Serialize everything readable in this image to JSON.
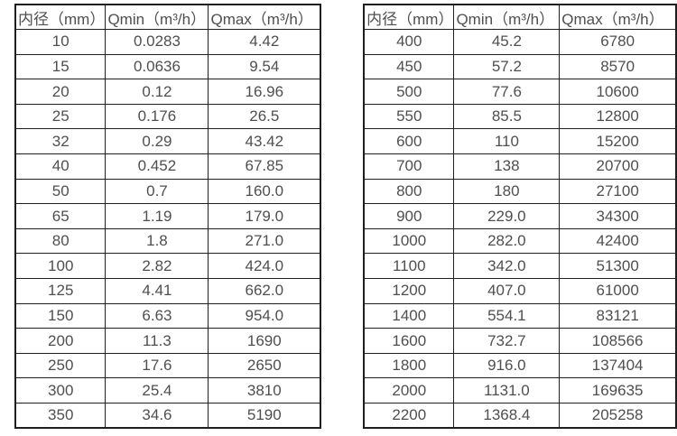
{
  "colors": {
    "border": "#1f1f1f",
    "text": "#4f4f4f",
    "background": "#ffffff"
  },
  "tables": [
    {
      "name": "flow-table-small-diameters",
      "headers": [
        "内径（mm）",
        "Qmin（m³/h）",
        "Qmax（m³/h）"
      ],
      "rows": [
        [
          "10",
          "0.0283",
          "4.42"
        ],
        [
          "15",
          "0.0636",
          "9.54"
        ],
        [
          "20",
          "0.12",
          "16.96"
        ],
        [
          "25",
          "0.176",
          "26.5"
        ],
        [
          "32",
          "0.29",
          "43.42"
        ],
        [
          "40",
          "0.452",
          "67.85"
        ],
        [
          "50",
          "0.7",
          "160.0"
        ],
        [
          "65",
          "1.19",
          "179.0"
        ],
        [
          "80",
          "1.8",
          "271.0"
        ],
        [
          "100",
          "2.82",
          "424.0"
        ],
        [
          "125",
          "4.41",
          "662.0"
        ],
        [
          "150",
          "6.63",
          "954.0"
        ],
        [
          "200",
          "11.3",
          "1690"
        ],
        [
          "250",
          "17.6",
          "2650"
        ],
        [
          "300",
          "25.4",
          "3810"
        ],
        [
          "350",
          "34.6",
          "5190"
        ]
      ]
    },
    {
      "name": "flow-table-large-diameters",
      "headers": [
        "内径（mm）",
        "Qmin（m³/h）",
        "Qmax（m³/h）"
      ],
      "rows": [
        [
          "400",
          "45.2",
          "6780"
        ],
        [
          "450",
          "57.2",
          "8570"
        ],
        [
          "500",
          "77.6",
          "10600"
        ],
        [
          "550",
          "85.5",
          "12800"
        ],
        [
          "600",
          "110",
          "15200"
        ],
        [
          "700",
          "138",
          "20700"
        ],
        [
          "800",
          "180",
          "27100"
        ],
        [
          "900",
          "229.0",
          "34300"
        ],
        [
          "1000",
          "282.0",
          "42400"
        ],
        [
          "1100",
          "342.0",
          "51300"
        ],
        [
          "1200",
          "407.0",
          "61000"
        ],
        [
          "1400",
          "554.1",
          "83121"
        ],
        [
          "1600",
          "732.7",
          "108566"
        ],
        [
          "1800",
          "916.0",
          "137404"
        ],
        [
          "2000",
          "1131.0",
          "169635"
        ],
        [
          "2200",
          "1368.4",
          "205258"
        ]
      ]
    }
  ],
  "chart_data": [
    {
      "type": "table",
      "title": "",
      "columns": [
        "内径（mm）",
        "Qmin（m³/h）",
        "Qmax（m³/h）"
      ],
      "rows": [
        [
          10,
          0.0283,
          4.42
        ],
        [
          15,
          0.0636,
          9.54
        ],
        [
          20,
          0.12,
          16.96
        ],
        [
          25,
          0.176,
          26.5
        ],
        [
          32,
          0.29,
          43.42
        ],
        [
          40,
          0.452,
          67.85
        ],
        [
          50,
          0.7,
          160.0
        ],
        [
          65,
          1.19,
          179.0
        ],
        [
          80,
          1.8,
          271.0
        ],
        [
          100,
          2.82,
          424.0
        ],
        [
          125,
          4.41,
          662.0
        ],
        [
          150,
          6.63,
          954.0
        ],
        [
          200,
          11.3,
          1690
        ],
        [
          250,
          17.6,
          2650
        ],
        [
          300,
          25.4,
          3810
        ],
        [
          350,
          34.6,
          5190
        ]
      ]
    },
    {
      "type": "table",
      "title": "",
      "columns": [
        "内径（mm）",
        "Qmin（m³/h）",
        "Qmax（m³/h）"
      ],
      "rows": [
        [
          400,
          45.2,
          6780
        ],
        [
          450,
          57.2,
          8570
        ],
        [
          500,
          77.6,
          10600
        ],
        [
          550,
          85.5,
          12800
        ],
        [
          600,
          110,
          15200
        ],
        [
          700,
          138,
          20700
        ],
        [
          800,
          180,
          27100
        ],
        [
          900,
          229.0,
          34300
        ],
        [
          1000,
          282.0,
          42400
        ],
        [
          1100,
          342.0,
          51300
        ],
        [
          1200,
          407.0,
          61000
        ],
        [
          1400,
          554.1,
          83121
        ],
        [
          1600,
          732.7,
          108566
        ],
        [
          1800,
          916.0,
          137404
        ],
        [
          2000,
          1131.0,
          169635
        ],
        [
          2200,
          1368.4,
          205258
        ]
      ]
    }
  ]
}
